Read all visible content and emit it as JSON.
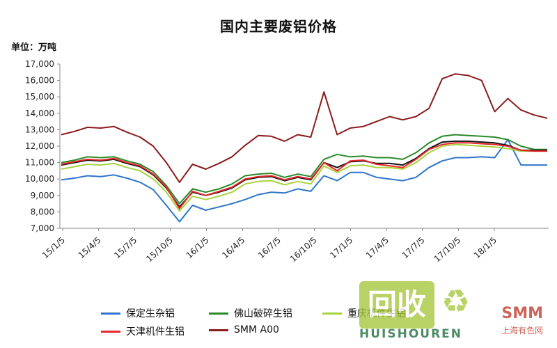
{
  "chart_data": {
    "type": "line",
    "title": "国内主要废铝价格",
    "unit_label": "单位：万吨",
    "xlabel": "",
    "ylabel": "",
    "ylim": [
      7000,
      17000
    ],
    "yticks": [
      "7,000",
      "8,000",
      "9,000",
      "10,000",
      "11,000",
      "12,000",
      "13,000",
      "14,000",
      "15,000",
      "16,000",
      "17,000"
    ],
    "xticks": [
      "15/1/5",
      "15/4/5",
      "15/7/5",
      "15/10/5",
      "16/1/5",
      "16/4/5",
      "16/7/5",
      "16/10/5",
      "17/1/5",
      "17/4/5",
      "17/7/5",
      "17/10/5",
      "18/1/5"
    ],
    "grid": false,
    "legend_position": "bottom",
    "series": [
      {
        "name": "保定生杂铝",
        "color": "#2e75c9",
        "values": [
          9950,
          10050,
          10200,
          10150,
          10250,
          10050,
          9800,
          9350,
          8400,
          7400,
          8400,
          8100,
          8300,
          8500,
          8750,
          9050,
          9200,
          9150,
          9400,
          9250,
          10200,
          9900,
          10400,
          10400,
          10100,
          10000,
          9900,
          10100,
          10700,
          11100,
          11300,
          11300,
          11350,
          11300,
          12400,
          10850,
          10850,
          10850
        ]
      },
      {
        "name": "佛山破碎生铝",
        "color": "#2a8a2a",
        "values": [
          11000,
          11150,
          11350,
          11300,
          11350,
          11100,
          10900,
          10450,
          9600,
          8500,
          9400,
          9200,
          9400,
          9700,
          10200,
          10300,
          10350,
          10100,
          10300,
          10150,
          11200,
          11500,
          11350,
          11400,
          11300,
          11300,
          11200,
          11600,
          12200,
          12600,
          12700,
          12650,
          12600,
          12550,
          12400,
          12000,
          11800,
          11800
        ]
      },
      {
        "name": "重庆机件生铝",
        "color": "#a8d23c",
        "values": [
          10600,
          10750,
          10900,
          10850,
          10950,
          10700,
          10500,
          10000,
          9200,
          8050,
          8950,
          8750,
          8950,
          9200,
          9700,
          9850,
          9900,
          9650,
          9850,
          9700,
          10800,
          10400,
          10800,
          10850,
          10700,
          10700,
          10600,
          11000,
          11600,
          12000,
          12100,
          12050,
          12000,
          11950,
          11850,
          11700,
          11700,
          11700
        ]
      },
      {
        "name": "机件生铝",
        "color": "#111111",
        "values": [
          10850,
          11000,
          11150,
          11100,
          11200,
          10950,
          10750,
          10250,
          9450,
          8300,
          9200,
          9000,
          9200,
          9450,
          9950,
          10100,
          10150,
          9900,
          10100,
          9950,
          11000,
          10700,
          11050,
          11100,
          10950,
          10950,
          10850,
          11250,
          11850,
          12250,
          12300,
          12300,
          12250,
          12200,
          12050,
          11750,
          11750,
          11750
        ]
      },
      {
        "name": "天津机件生铝",
        "color": "#e8262c",
        "values": [
          10900,
          11050,
          11200,
          11150,
          11250,
          11000,
          10800,
          10300,
          9500,
          8200,
          9250,
          9000,
          9250,
          9500,
          10000,
          10150,
          10200,
          9950,
          10150,
          10000,
          11000,
          10500,
          11100,
          11150,
          10900,
          10800,
          10700,
          11200,
          11800,
          12100,
          12200,
          12200,
          12150,
          12100,
          12000,
          11750,
          11700,
          11700
        ]
      },
      {
        "name": "SMM A00",
        "color": "#8b1a1a",
        "values": [
          12700,
          12900,
          13150,
          13100,
          13200,
          12850,
          12550,
          12000,
          11000,
          9800,
          10900,
          10600,
          10950,
          11350,
          12050,
          12650,
          12600,
          12300,
          12700,
          12550,
          15300,
          12700,
          13100,
          13200,
          13500,
          13800,
          13600,
          13800,
          14300,
          16100,
          16400,
          16300,
          16000,
          14100,
          14900,
          14200,
          13900,
          13700
        ]
      }
    ]
  },
  "watermark": {
    "logo_text": "回收",
    "sub_text": "HUISHOUREN",
    "brand": "SMM",
    "brand_cn": "上海有色网"
  }
}
